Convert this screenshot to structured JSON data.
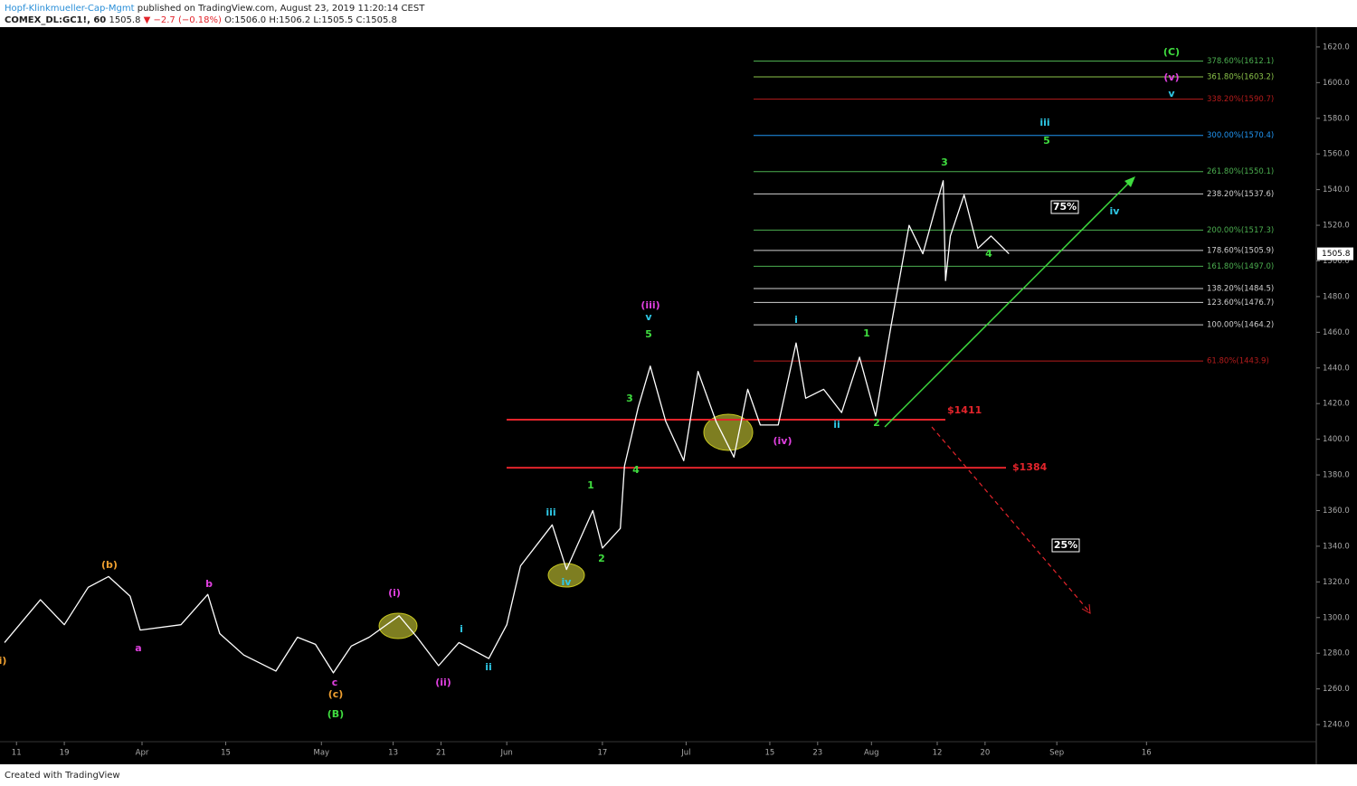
{
  "header": {
    "author": "Hopf-Klinkmueller-Cap-Mgmt",
    "published": "published on TradingView.com, August 23, 2019 11:20:14 CEST",
    "symbol": "COMEX_DL:GC1!, 60",
    "last": "1505.8",
    "change": "▼ −2.7 (−0.18%)",
    "ohlc": "O:1506.0 H:1506.2 L:1505.5 C:1505.8"
  },
  "chart_data": {
    "type": "line",
    "color": "#ffffff",
    "x": [
      68,
      74,
      78,
      82,
      85.4,
      89,
      90.7,
      97.5,
      102,
      104,
      108,
      113.4,
      117,
      120,
      123,
      126,
      129,
      134,
      137,
      140.6,
      144,
      149,
      152,
      154.3,
      159.6,
      162,
      166.4,
      168,
      171,
      171.7,
      174,
      176,
      178.6,
      181.6,
      184,
      187,
      190,
      192.3,
      194.4,
      197.4,
      200.4,
      202,
      205,
      208,
      211,
      213.7,
      216.3,
      219.3,
      221.6,
      223.9,
      225,
      225.4,
      226.2,
      228.5,
      230.8,
      233,
      236
    ],
    "values": [
      1286,
      1310,
      1296,
      1317,
      1323,
      1312,
      1293,
      1296,
      1313,
      1291,
      1279,
      1270,
      1289,
      1285,
      1269,
      1284,
      1289,
      1301,
      1289,
      1273,
      1286,
      1277,
      1296,
      1329,
      1352,
      1327,
      1360,
      1339,
      1350,
      1385,
      1418,
      1441,
      1410,
      1388,
      1438,
      1410,
      1390,
      1428,
      1408,
      1408,
      1454,
      1423,
      1428,
      1415,
      1446,
      1413,
      1464,
      1520,
      1504,
      1532,
      1545,
      1489,
      1514,
      1537,
      1507,
      1514,
      1504
    ],
    "xlim": [
      68,
      287.4
    ],
    "ylim": [
      1230.4,
      1630.1
    ],
    "xticks": [
      {
        "value": 70,
        "label": "11"
      },
      {
        "value": 78,
        "label": "19"
      },
      {
        "value": 91,
        "label": "Apr"
      },
      {
        "value": 105,
        "label": "15"
      },
      {
        "value": 121,
        "label": "May"
      },
      {
        "value": 133,
        "label": "13"
      },
      {
        "value": 141,
        "label": "21"
      },
      {
        "value": 152,
        "label": "Jun"
      },
      {
        "value": 168,
        "label": "17"
      },
      {
        "value": 182,
        "label": "Jul"
      },
      {
        "value": 196,
        "label": "15"
      },
      {
        "value": 204,
        "label": "23"
      },
      {
        "value": 213,
        "label": "Aug"
      },
      {
        "value": 224,
        "label": "12"
      },
      {
        "value": 232,
        "label": "20"
      },
      {
        "value": 244,
        "label": "Sep"
      },
      {
        "value": 259,
        "label": "16"
      }
    ],
    "yticks": [
      {
        "value": 1240,
        "label": "1240.0"
      },
      {
        "value": 1260,
        "label": "1260.0"
      },
      {
        "value": 1280,
        "label": "1280.0"
      },
      {
        "value": 1300,
        "label": "1300.0"
      },
      {
        "value": 1320,
        "label": "1320.0"
      },
      {
        "value": 1340,
        "label": "1340.0"
      },
      {
        "value": 1360,
        "label": "1360.0"
      },
      {
        "value": 1380,
        "label": "1380.0"
      },
      {
        "value": 1400,
        "label": "1400.0"
      },
      {
        "value": 1420,
        "label": "1420.0"
      },
      {
        "value": 1440,
        "label": "1440.0"
      },
      {
        "value": 1460,
        "label": "1460.0"
      },
      {
        "value": 1480,
        "label": "1480.0"
      },
      {
        "value": 1500,
        "label": "1500.0"
      },
      {
        "value": 1520,
        "label": "1520.0"
      },
      {
        "value": 1540,
        "label": "1540.0"
      },
      {
        "value": 1560,
        "label": "1560.0"
      },
      {
        "value": 1580,
        "label": "1580.0"
      },
      {
        "value": 1600,
        "label": "1600.0"
      },
      {
        "value": 1620,
        "label": "1620.0"
      }
    ],
    "levels": [
      {
        "label": "378.60%(1612.1)",
        "value": 1612.1,
        "color": "#4caf50"
      },
      {
        "label": "361.80%(1603.2)",
        "value": 1603.2,
        "color": "#8bc34a"
      },
      {
        "label": "338.20%(1590.7)",
        "value": 1590.7,
        "color": "#b71c1c"
      },
      {
        "label": "300.00%(1570.4)",
        "value": 1570.4,
        "color": "#2196f3"
      },
      {
        "label": "261.80%(1550.1)",
        "value": 1550.1,
        "color": "#4caf50"
      },
      {
        "label": "238.20%(1537.6)",
        "value": 1537.6,
        "color": "#d0d0d0"
      },
      {
        "label": "200.00%(1517.3)",
        "value": 1517.3,
        "color": "#4caf50"
      },
      {
        "label": "178.60%(1505.9)",
        "value": 1505.9,
        "color": "#d0d0d0"
      },
      {
        "label": "161.80%(1497.0)",
        "value": 1497.0,
        "color": "#4caf50"
      },
      {
        "label": "138.20%(1484.5)",
        "value": 1484.5,
        "color": "#d0d0d0"
      },
      {
        "label": "123.60%(1476.7)",
        "value": 1476.7,
        "color": "#d0d0d0"
      },
      {
        "label": "100.00%(1464.2)",
        "value": 1464.2,
        "color": "#d0d0d0"
      },
      {
        "label": "61.80%(1443.9)",
        "value": 1443.9,
        "color": "#b71c1c"
      }
    ],
    "hlines": [
      {
        "label": "$1411",
        "value": 1411,
        "color": "#e3242b"
      },
      {
        "label": "$1384",
        "value": 1384,
        "color": "#e3242b"
      }
    ],
    "annotations": [
      {
        "text": "(C)",
        "color": "#3fdc3f"
      },
      {
        "text": "(v)",
        "color": "#e040e0"
      },
      {
        "text": "v",
        "color": "#2ec8e6"
      },
      {
        "text": "iii",
        "color": "#2ec8e6"
      },
      {
        "text": "5",
        "color": "#3fdc3f"
      },
      {
        "text": "3",
        "color": "#3fdc3f"
      },
      {
        "text": "75%",
        "color": "#ffffff",
        "boxed": true
      },
      {
        "text": "iv",
        "color": "#2ec8e6"
      },
      {
        "text": "4",
        "color": "#3fdc3f"
      },
      {
        "text": "(iii)",
        "color": "#e040e0"
      },
      {
        "text": "v",
        "color": "#2ec8e6"
      },
      {
        "text": "5",
        "color": "#3fdc3f"
      },
      {
        "text": "i",
        "color": "#2ec8e6"
      },
      {
        "text": "1",
        "color": "#3fdc3f"
      },
      {
        "text": "3",
        "color": "#3fdc3f"
      },
      {
        "text": "ii",
        "color": "#2ec8e6"
      },
      {
        "text": "2",
        "color": "#3fdc3f"
      },
      {
        "text": "(iv)",
        "color": "#e040e0"
      },
      {
        "text": "4",
        "color": "#3fdc3f"
      },
      {
        "text": "1",
        "color": "#3fdc3f"
      },
      {
        "text": "iii",
        "color": "#2ec8e6"
      },
      {
        "text": "25%",
        "color": "#ffffff",
        "boxed": true
      },
      {
        "text": "2",
        "color": "#3fdc3f"
      },
      {
        "text": "iv",
        "color": "#2ec8e6"
      },
      {
        "text": "(b)",
        "color": "#f0a030"
      },
      {
        "text": "b",
        "color": "#e040e0"
      },
      {
        "text": "(i)",
        "color": "#e040e0"
      },
      {
        "text": "i",
        "color": "#2ec8e6"
      },
      {
        "text": "a",
        "color": "#e040e0"
      },
      {
        "text": "i)",
        "color": "#f0a030"
      },
      {
        "text": "ii",
        "color": "#2ec8e6"
      },
      {
        "text": "(ii)",
        "color": "#e040e0"
      },
      {
        "text": "c",
        "color": "#e040e0"
      },
      {
        "text": "(c)",
        "color": "#f0a030"
      },
      {
        "text": "(B)",
        "color": "#3fdc3f"
      }
    ]
  },
  "footer": "Created with TradingView"
}
